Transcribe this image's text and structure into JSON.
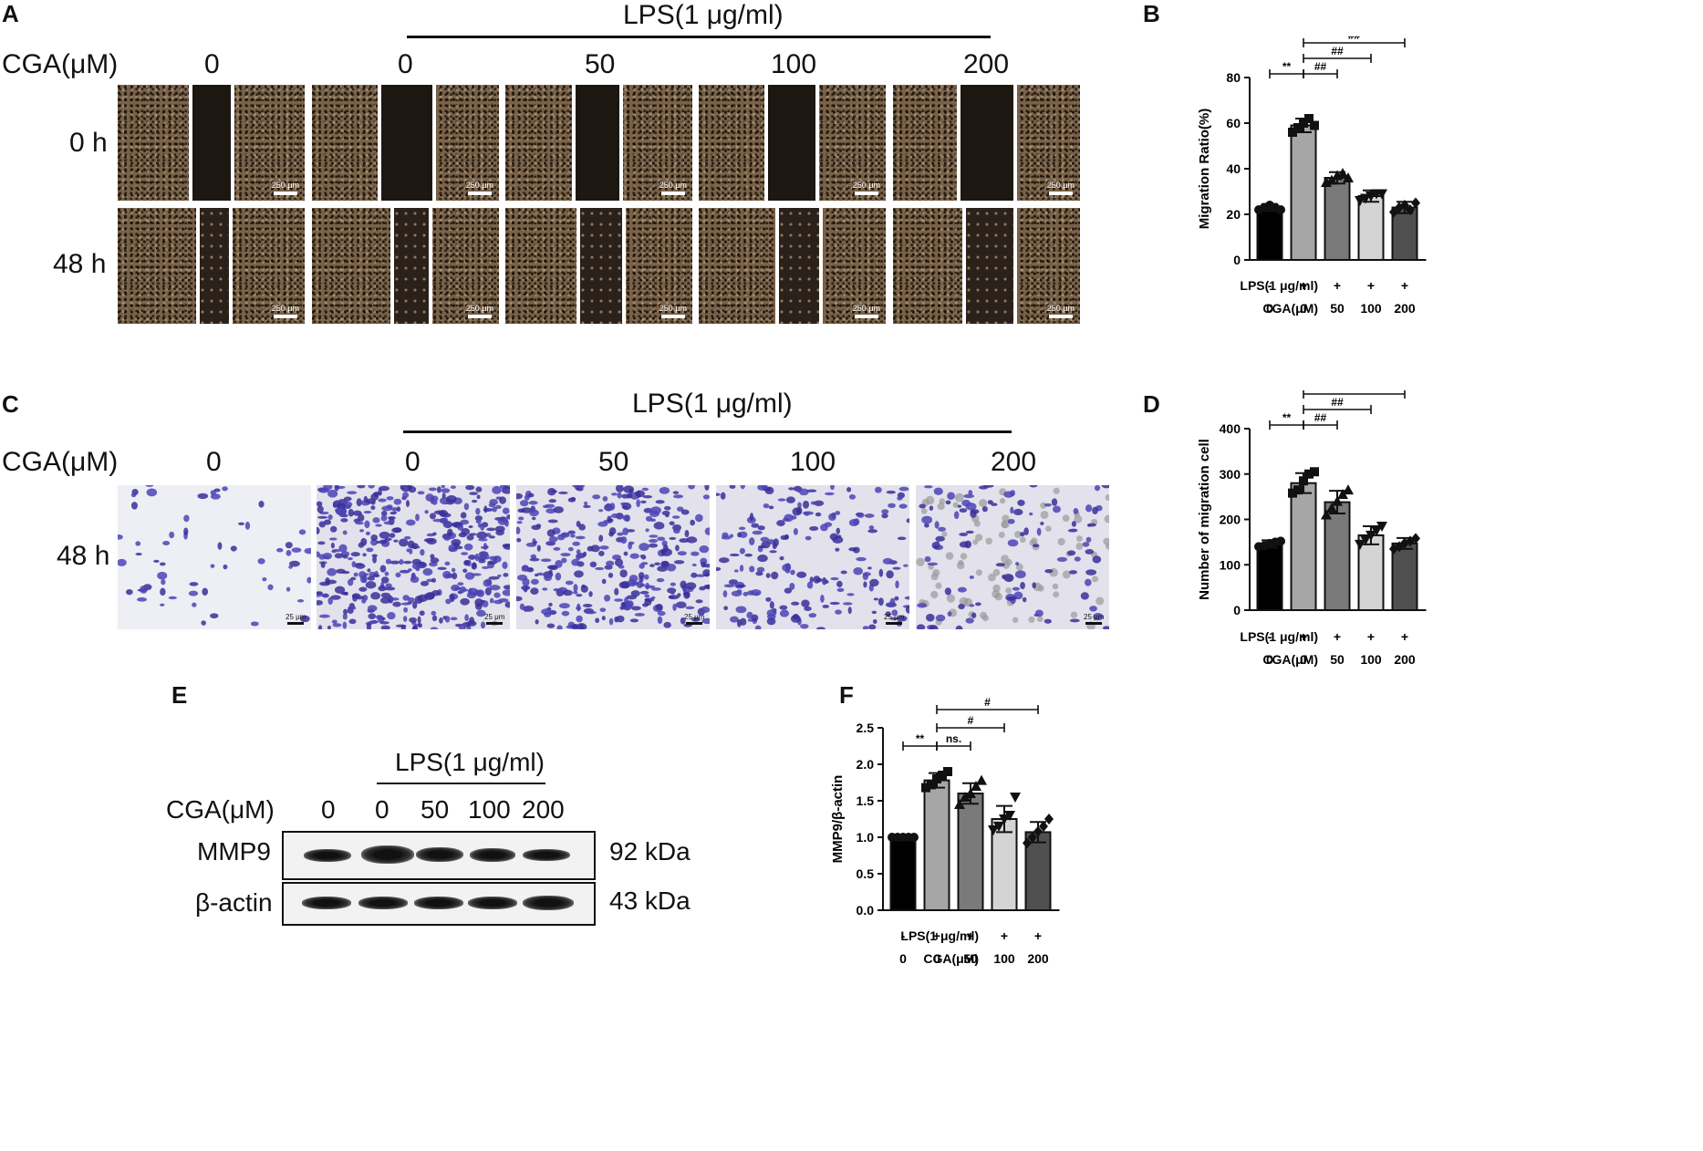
{
  "panels": {
    "a": "A",
    "b": "B",
    "c": "C",
    "d": "D",
    "e": "E",
    "f": "F"
  },
  "panel_a": {
    "lps_label": "LPS(1 μg/ml)",
    "cga_label": "CGA(μM)",
    "doses": [
      "0",
      "0",
      "50",
      "100",
      "200"
    ],
    "rows": [
      "0 h",
      "48 h"
    ],
    "scale": "250 μm"
  },
  "panel_c": {
    "lps_label": "LPS(1 μg/ml)",
    "cga_label": "CGA(μM)",
    "doses": [
      "0",
      "0",
      "50",
      "100",
      "200"
    ],
    "row": "48 h",
    "scale": "25 μm"
  },
  "panel_e": {
    "lps_label": "LPS(1 μg/ml)",
    "cga_label": "CGA(μM)",
    "doses": [
      "0",
      "0",
      "50",
      "100",
      "200"
    ],
    "proteins": [
      {
        "name": "MMP9",
        "size": "92 kDa"
      },
      {
        "name": "β-actin",
        "size": "43 kDa"
      }
    ]
  },
  "x_rows": {
    "lps_label": "LPS(1 μg/ml)",
    "lps_values": [
      "-",
      "+",
      "+",
      "+",
      "+"
    ],
    "cga_label": "CGA(μM)",
    "cga_values": [
      "0",
      "0",
      "50",
      "100",
      "200"
    ]
  },
  "chart_data": [
    {
      "panel": "B",
      "type": "bar",
      "ylabel": "Migration Ratio(%)",
      "ylim": [
        0,
        80
      ],
      "yticks": [
        0,
        20,
        40,
        60,
        80
      ],
      "values": [
        23,
        59,
        36,
        28,
        23
      ],
      "errors": [
        1.5,
        3,
        2.5,
        2.5,
        2.5
      ],
      "points": [
        [
          22,
          23,
          24,
          23,
          22
        ],
        [
          56,
          58,
          60,
          62,
          59
        ],
        [
          34,
          35,
          37,
          38,
          36
        ],
        [
          26,
          27,
          28,
          29,
          29
        ],
        [
          21,
          23,
          24,
          22,
          25
        ]
      ],
      "colors": [
        "#000000",
        "#a6a6a6",
        "#7a7a7a",
        "#d4d4d4",
        "#505050"
      ],
      "sig": [
        {
          "from": 0,
          "to": 1,
          "label": "**"
        },
        {
          "from": 1,
          "to": 2,
          "label": "##"
        },
        {
          "from": 1,
          "to": 3,
          "label": "##"
        },
        {
          "from": 1,
          "to": 4,
          "label": "##"
        }
      ]
    },
    {
      "panel": "D",
      "type": "bar",
      "ylabel": "Number of migration cell",
      "ylim": [
        0,
        400
      ],
      "yticks": [
        0,
        100,
        200,
        300,
        400
      ],
      "values": [
        146,
        280,
        238,
        165,
        147
      ],
      "errors": [
        8,
        22,
        25,
        20,
        12
      ],
      "points": [
        [
          140,
          142,
          147,
          150,
          152
        ],
        [
          258,
          265,
          285,
          300,
          305
        ],
        [
          210,
          225,
          240,
          255,
          265
        ],
        [
          145,
          155,
          165,
          175,
          185
        ],
        [
          135,
          140,
          148,
          152,
          158
        ]
      ],
      "colors": [
        "#000000",
        "#a6a6a6",
        "#7a7a7a",
        "#d4d4d4",
        "#505050"
      ],
      "sig": [
        {
          "from": 0,
          "to": 1,
          "label": "**"
        },
        {
          "from": 1,
          "to": 2,
          "label": "##"
        },
        {
          "from": 1,
          "to": 3,
          "label": "##"
        },
        {
          "from": 1,
          "to": 4,
          "label": "##"
        }
      ]
    },
    {
      "panel": "F",
      "type": "bar",
      "ylabel": "MMP9/β-actin",
      "ylim": [
        0,
        2.5
      ],
      "yticks": [
        "0.0",
        "0.5",
        "1.0",
        "1.5",
        "2.0",
        "2.5"
      ],
      "values": [
        1.0,
        1.78,
        1.6,
        1.25,
        1.07
      ],
      "errors": [
        0.0,
        0.1,
        0.14,
        0.18,
        0.14
      ],
      "points": [
        [
          1.0,
          1.0,
          1.0,
          1.0,
          1.0
        ],
        [
          1.68,
          1.72,
          1.8,
          1.85,
          1.9
        ],
        [
          1.45,
          1.55,
          1.6,
          1.7,
          1.78
        ],
        [
          1.1,
          1.15,
          1.25,
          1.3,
          1.55
        ],
        [
          0.92,
          1.0,
          1.08,
          1.15,
          1.25
        ]
      ],
      "colors": [
        "#000000",
        "#a6a6a6",
        "#7a7a7a",
        "#d4d4d4",
        "#505050"
      ],
      "sig": [
        {
          "from": 0,
          "to": 1,
          "label": "**"
        },
        {
          "from": 1,
          "to": 2,
          "label": "ns."
        },
        {
          "from": 1,
          "to": 3,
          "label": "#"
        },
        {
          "from": 1,
          "to": 4,
          "label": "#"
        }
      ]
    }
  ]
}
